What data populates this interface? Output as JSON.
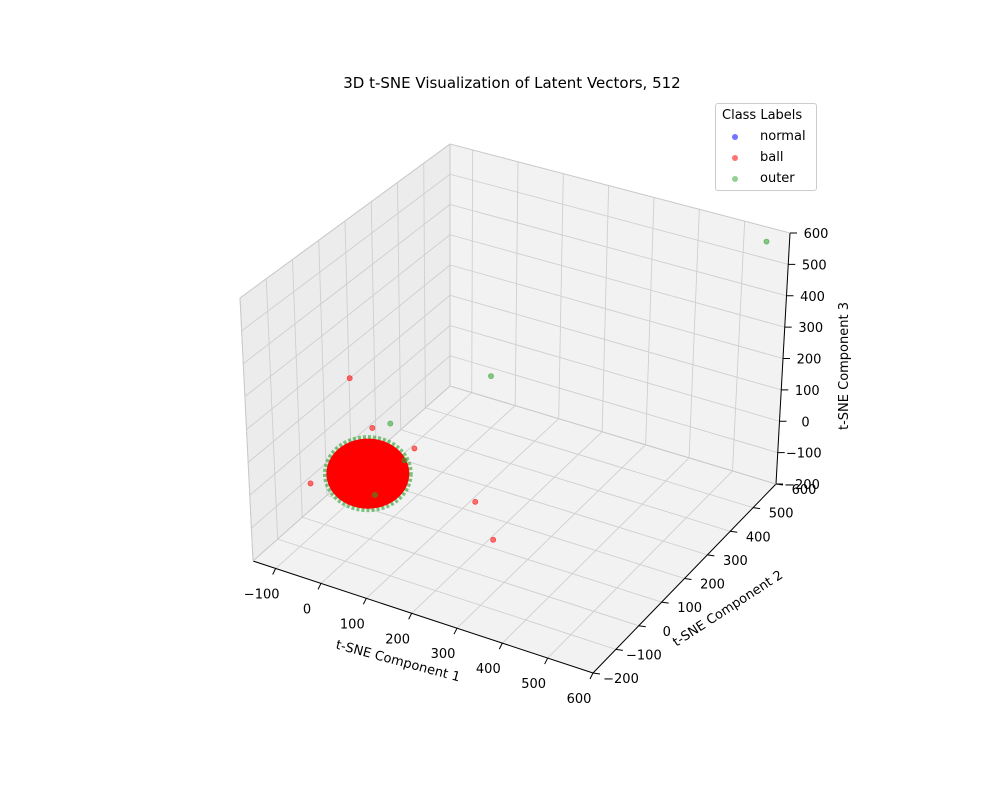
{
  "chart_data": {
    "type": "scatter",
    "projection": "3d",
    "title": "3D t-SNE Visualization of Latent Vectors, 512",
    "xlabel": "t-SNE Component 1",
    "ylabel": "t-SNE Component 2",
    "zlabel": "t-SNE Component 3",
    "xlim": [
      -150,
      600
    ],
    "ylim": [
      -200,
      600
    ],
    "zlim": [
      -200,
      600
    ],
    "xticks": [
      "−100",
      "0",
      "100",
      "200",
      "300",
      "400",
      "500",
      "600"
    ],
    "yticks": [
      "−200",
      "−100",
      "0",
      "100",
      "200",
      "300",
      "400",
      "500",
      "600"
    ],
    "zticks": [
      "−200",
      "−100",
      "0",
      "100",
      "200",
      "300",
      "400",
      "500",
      "600"
    ],
    "grid": true,
    "legend": {
      "title": "Class Labels",
      "placement": "top-right",
      "entries": [
        {
          "label": "normal",
          "color": "#0000ff"
        },
        {
          "label": "ball",
          "color": "#ff0000"
        },
        {
          "label": "outer",
          "color": "#2ca02c"
        }
      ]
    },
    "cluster": {
      "description_free": true,
      "center": [
        0,
        0,
        0
      ],
      "radius": 45,
      "fill_color": "#ff0000",
      "edge_color": "#2ca02c"
    },
    "series": [
      {
        "name": "normal",
        "color": "#0000ff",
        "points": []
      },
      {
        "name": "ball",
        "color": "#ff0000",
        "points": [
          [
            -100,
            -50,
            -40
          ],
          [
            -40,
            10,
            270
          ],
          [
            -10,
            40,
            110
          ],
          [
            60,
            80,
            50
          ],
          [
            210,
            50,
            -30
          ],
          [
            260,
            30,
            -110
          ]
        ]
      },
      {
        "name": "outer",
        "color": "#2ca02c",
        "points": [
          [
            30,
            40,
            140
          ],
          [
            60,
            40,
            40
          ],
          [
            110,
            300,
            150
          ],
          [
            560,
            580,
            570
          ],
          [
            20,
            -10,
            -50
          ]
        ]
      }
    ]
  }
}
